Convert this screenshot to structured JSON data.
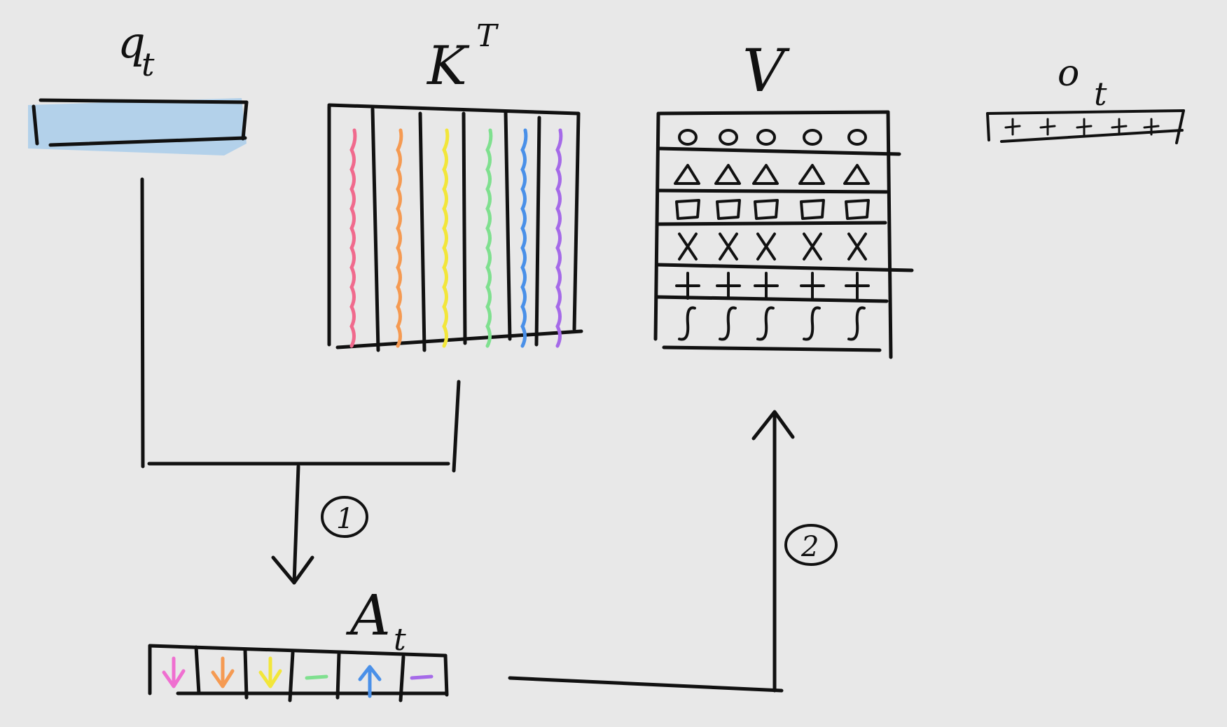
{
  "labels": {
    "q": "q",
    "q_sub": "t",
    "k": "K",
    "k_sup": "T",
    "v": "V",
    "o": "o",
    "o_sub": "t",
    "a": "A",
    "a_sub": "t",
    "step1": "1",
    "step2": "2"
  },
  "colors": {
    "ink": "#111111",
    "background": "#e8e8e8",
    "query_fill": "#b3d1ea",
    "key_columns": [
      "#f06a8d",
      "#f59a52",
      "#f2e63a",
      "#7fe08f",
      "#4a90e8",
      "#a56ae8"
    ],
    "attention_cells": [
      "#ef6fd0",
      "#f59a52",
      "#f2e63a",
      "#7fe08f",
      "#4a90e8",
      "#a56ae8"
    ]
  },
  "v_rows": [
    "circle",
    "triangle",
    "square",
    "x",
    "plus",
    "integral"
  ],
  "attention_glyphs": [
    "arrow-down",
    "arrow-down",
    "arrow-down",
    "dash",
    "arrow-up",
    "dash"
  ],
  "output_glyph": "plus"
}
